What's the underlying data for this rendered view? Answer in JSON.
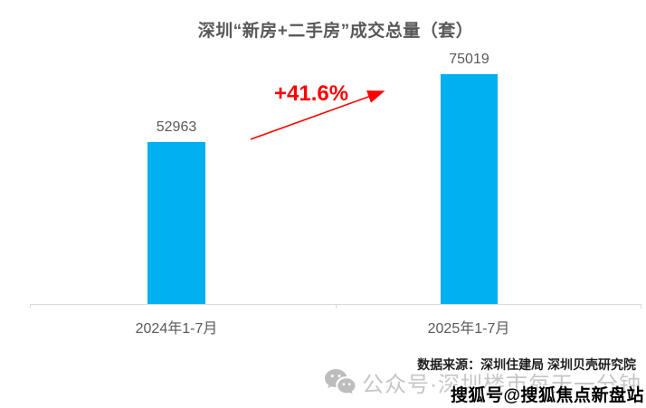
{
  "chart_data": {
    "type": "bar",
    "title": "深圳“新房+二手房”成交总量（套）",
    "categories": [
      "2024年1-7月",
      "2025年1-7月"
    ],
    "values": [
      52963,
      75019
    ],
    "change_annotation": "+41.6%",
    "ylim": [
      0,
      80000
    ],
    "grid": false,
    "legend": "none",
    "data_labels": true,
    "bar_color": "#00B0F0",
    "annotation_color": "#FF0000",
    "label_color": "#595959"
  },
  "footer": {
    "source": "数据来源：深圳住建局 深圳贝壳研究院",
    "wechat_watermark": "公众号·深圳楼市每天一分钟",
    "sohu_watermark": "搜狐号@搜狐焦点新盘站"
  },
  "colors": {
    "bar": "#00B0F0",
    "red": "#FF0000",
    "text_gray": "#595959",
    "axis_gray": "#D9D9D9",
    "watermark_gray": "#C6C6C6"
  }
}
